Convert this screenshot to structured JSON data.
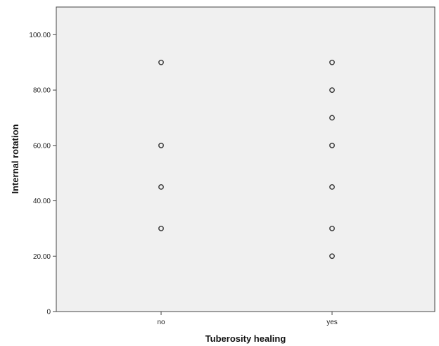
{
  "chart_data": {
    "type": "scatter",
    "title": "",
    "xlabel": "Tuberosity healing",
    "ylabel": "Internal rotation",
    "x_categories": [
      "no",
      "yes"
    ],
    "ylim": [
      0,
      110
    ],
    "y_ticks": [
      {
        "value": 0,
        "label": "0"
      },
      {
        "value": 20,
        "label": "20.00"
      },
      {
        "value": 40,
        "label": "40.00"
      },
      {
        "value": 60,
        "label": "60.00"
      },
      {
        "value": 80,
        "label": "80.00"
      },
      {
        "value": 100,
        "label": "100.00"
      }
    ],
    "grid": false,
    "points": [
      {
        "x": "no",
        "y": 90
      },
      {
        "x": "no",
        "y": 60
      },
      {
        "x": "no",
        "y": 45
      },
      {
        "x": "no",
        "y": 30
      },
      {
        "x": "yes",
        "y": 90
      },
      {
        "x": "yes",
        "y": 80
      },
      {
        "x": "yes",
        "y": 70
      },
      {
        "x": "yes",
        "y": 60
      },
      {
        "x": "yes",
        "y": 45
      },
      {
        "x": "yes",
        "y": 30
      },
      {
        "x": "yes",
        "y": 20
      }
    ]
  },
  "colors": {
    "plot_background": "#f0f0f0",
    "frame": "#444444",
    "marker_stroke": "#333333"
  }
}
